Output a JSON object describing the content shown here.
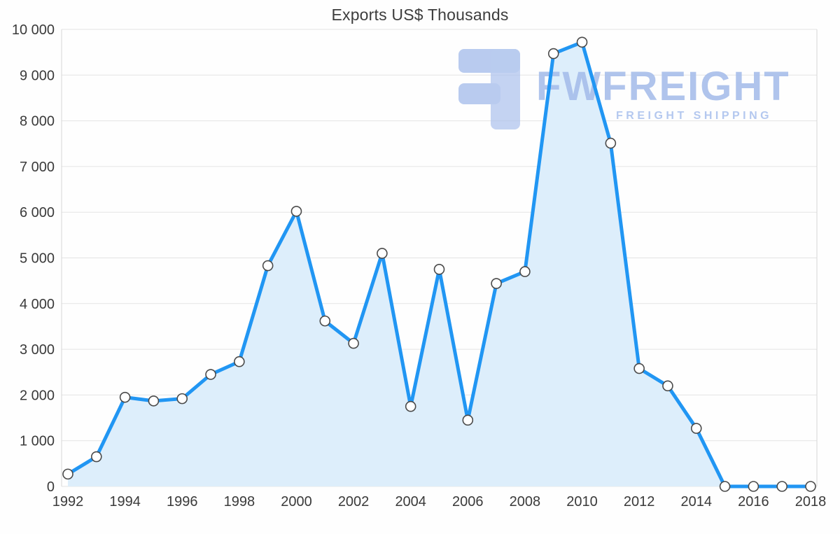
{
  "page": {
    "title": "Exports US$ Thousands"
  },
  "watermark": {
    "brand": "FWFREIGHT",
    "subtitle": "FREIGHT SHIPPING",
    "logo_icon": "fwfreight-logo",
    "color": "#a9bfec"
  },
  "chart_data": {
    "type": "area",
    "title": "Exports US$ Thousands",
    "x": [
      1992,
      1993,
      1994,
      1995,
      1996,
      1997,
      1998,
      1999,
      2000,
      2001,
      2002,
      2003,
      2004,
      2005,
      2006,
      2007,
      2008,
      2009,
      2010,
      2011,
      2012,
      2013,
      2014,
      2015,
      2016,
      2017,
      2018
    ],
    "series": [
      {
        "name": "Exports US$ Thousands",
        "values": [
          270,
          650,
          1950,
          1870,
          1920,
          2450,
          2730,
          4830,
          6020,
          3620,
          3130,
          5100,
          1750,
          4750,
          1450,
          4440,
          4700,
          9470,
          9720,
          7510,
          2580,
          2200,
          1270,
          0,
          0,
          0,
          0
        ]
      }
    ],
    "xlabel": "",
    "ylabel": "",
    "ylim": [
      0,
      10000
    ],
    "y_tick_step": 1000,
    "y_tick_labels": [
      "0",
      "1 000",
      "2 000",
      "3 000",
      "4 000",
      "5 000",
      "6 000",
      "7 000",
      "8 000",
      "9 000",
      "10 000"
    ],
    "x_tick_labels": [
      "1992",
      "1994",
      "1996",
      "1998",
      "2000",
      "2002",
      "2004",
      "2006",
      "2008",
      "2010",
      "2012",
      "2014",
      "2016",
      "2018"
    ],
    "grid": true,
    "legend": false,
    "line_color": "#2196f3",
    "fill_color": "#ddeefb",
    "marker_fill": "#ffffff",
    "marker_stroke": "#4a4a4a",
    "grid_color": "#e4e4e4",
    "axis_color": "#d6d6d6"
  }
}
